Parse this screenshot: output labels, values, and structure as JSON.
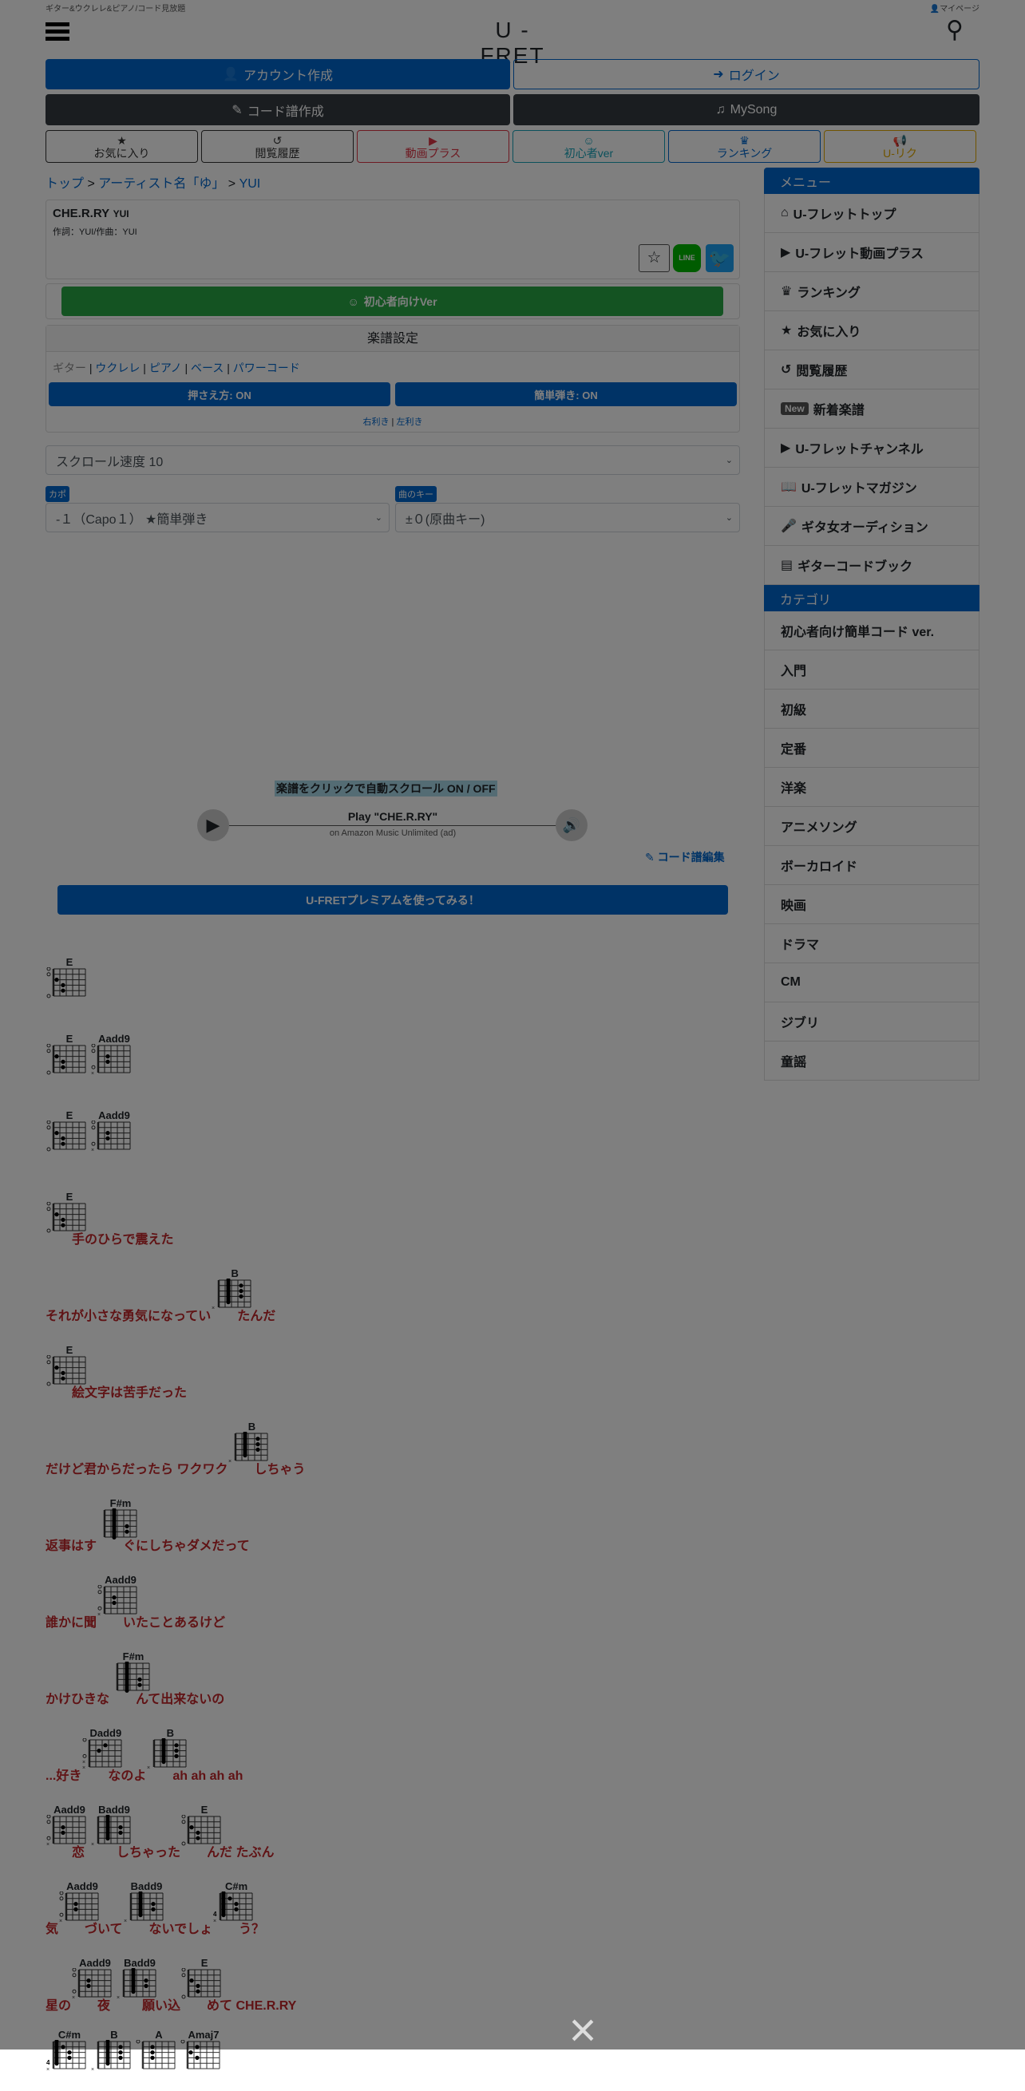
{
  "header": {
    "tagline": "ギター&ウクレレ&ピアノ/コード見放題",
    "mypage": "マイページ",
    "logo": "U - FRET"
  },
  "account": {
    "create": "アカウント作成",
    "login": "ログイン",
    "chord_create": "コード譜作成",
    "mysong": "MySong"
  },
  "nav": [
    {
      "label": "お気に入り",
      "icon": "★",
      "color": "#333"
    },
    {
      "label": "閲覧履歴",
      "icon": "↺",
      "color": "#333"
    },
    {
      "label": "動画プラス",
      "icon": "▶",
      "color": "#dc3545"
    },
    {
      "label": "初心者ver",
      "icon": "☺",
      "color": "#17a2b8"
    },
    {
      "label": "ランキング",
      "icon": "♛",
      "color": "#0066cc"
    },
    {
      "label": "U-リク",
      "icon": "📢",
      "color": "#e0a800"
    }
  ],
  "breadcrumb": {
    "top": "トップ",
    "artist_index": "アーティスト名「ゆ」",
    "artist": "YUI"
  },
  "song": {
    "title": "CHE.R.RY",
    "artist": "YUI",
    "credits": "作詞：YUI/作曲：YUI",
    "line": "LINE"
  },
  "beginner_button": "初心者向けVer",
  "settings": {
    "title": "楽譜設定",
    "instruments": [
      "ギター",
      "ウクレレ",
      "ピアノ",
      "ベース",
      "パワーコード"
    ],
    "fingering": "押さえ方: ON",
    "easy": "簡単弾き: ON",
    "right": "右利き",
    "left": "左利き"
  },
  "scroll_speed": "スクロール速度 10",
  "capo": {
    "label": "カポ",
    "value": "-１（Capo１） ★簡単弾き"
  },
  "key": {
    "label": "曲のキー",
    "value": "±０(原曲キー)"
  },
  "autoscroll": "楽譜をクリックで自動スクロール ON / OFF",
  "player": {
    "title": "Play \"CHE.R.RY\"",
    "subtitle": "on Amazon Music Unlimited (ad)"
  },
  "edit": "コード譜編集",
  "premium": "U-FRETプレミアムを使ってみる！",
  "sidebar": {
    "menu_title": "メニュー",
    "menu": [
      {
        "icon": "⌂",
        "label": "U-フレットトップ"
      },
      {
        "icon": "▶",
        "label": "U-フレット動画プラス"
      },
      {
        "icon": "♛",
        "label": "ランキング"
      },
      {
        "icon": "★",
        "label": "お気に入り"
      },
      {
        "icon": "↺",
        "label": "閲覧履歴"
      },
      {
        "icon": "",
        "badge": "New",
        "label": "新着楽譜"
      },
      {
        "icon": "▶",
        "label": "U-フレットチャンネル"
      },
      {
        "icon": "📖",
        "label": "U-フレットマガジン"
      },
      {
        "icon": "🎤",
        "label": "ギタ女オーディション"
      },
      {
        "icon": "▤",
        "label": "ギターコードブック"
      }
    ],
    "category_title": "カテゴリ",
    "categories": [
      "初心者向け簡単コード ver.",
      "入門",
      "初級",
      "定番",
      "洋楽",
      "アニメソング",
      "ボーカロイド",
      "映画",
      "ドラマ",
      "CM",
      "ジブリ",
      "童謡"
    ]
  },
  "score": [
    [
      {
        "c": "E",
        "l": ""
      }
    ],
    [
      {
        "c": "E",
        "l": ""
      },
      {
        "c": "Aadd9",
        "l": ""
      }
    ],
    [
      {
        "c": "E",
        "l": ""
      },
      {
        "c": "Aadd9",
        "l": ""
      }
    ],
    [
      {
        "c": "E",
        "l": "手のひらで震えた"
      }
    ],
    [
      {
        "c": null,
        "l": "それが小さな勇気になってい"
      },
      {
        "c": "B",
        "l": "たんだ"
      }
    ],
    [
      {
        "c": "E",
        "l": "絵文字は苦手だった"
      }
    ],
    [
      {
        "c": null,
        "l": "だけど君からだったら ワクワク"
      },
      {
        "c": "B",
        "l": "しちゃう"
      }
    ],
    [
      {
        "c": null,
        "l": "返事はす"
      },
      {
        "c": "F#m",
        "l": "ぐにしちゃダメだって"
      }
    ],
    [
      {
        "c": null,
        "l": "誰かに聞"
      },
      {
        "c": "Aadd9",
        "l": "いたことあるけど"
      }
    ],
    [
      {
        "c": null,
        "l": "かけひきな"
      },
      {
        "c": "F#m",
        "l": "んて出来ないの"
      }
    ],
    [
      {
        "c": null,
        "l": "...好き"
      },
      {
        "c": "Dadd9",
        "l": "なのよ"
      },
      {
        "c": "B",
        "l": "ah ah ah ah"
      }
    ],
    [
      {
        "c": "Aadd9",
        "l": "恋"
      },
      {
        "c": "Badd9",
        "l": "しちゃった"
      },
      {
        "c": "E",
        "l": "んだ たぶん"
      }
    ],
    [
      {
        "c": null,
        "l": "気"
      },
      {
        "c": "Aadd9",
        "l": "づいて"
      },
      {
        "c": "Badd9",
        "l": "ないでしょ"
      },
      {
        "c": "C#m",
        "l": "う？"
      }
    ],
    [
      {
        "c": null,
        "l": "星の"
      },
      {
        "c": "Aadd9",
        "l": "夜"
      },
      {
        "c": "Badd9",
        "l": "願い込"
      },
      {
        "c": "E",
        "l": "めて CHE.R.RY"
      }
    ],
    [
      {
        "c": "C#m",
        "l": ""
      },
      {
        "c": "B",
        "l": ""
      },
      {
        "c": "A",
        "l": ""
      },
      {
        "c": "Amaj7",
        "l": ""
      }
    ]
  ],
  "close": "×"
}
